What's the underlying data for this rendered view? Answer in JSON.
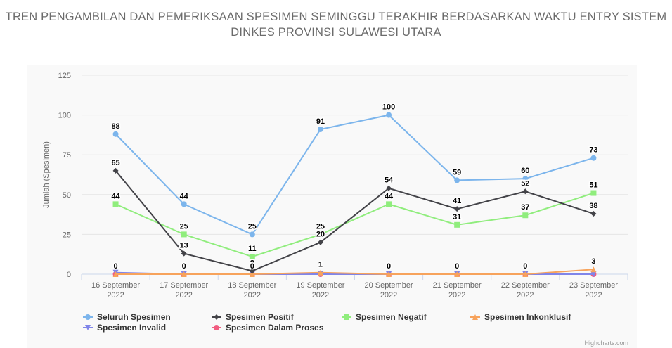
{
  "title": "TREN PENGAMBILAN DAN PEMERIKSAAN SPESIMEN SEMINGGU TERAKHIR BERDASARKAN WAKTU ENTRY SISTEM",
  "subtitle": "DINKES PROVINSI SULAWESI UTARA",
  "credits": "Highcharts.com",
  "chart_data": {
    "type": "line",
    "title": "TREN PENGAMBILAN DAN PEMERIKSAAN SPESIMEN SEMINGGU TERAKHIR BERDASARKAN WAKTU ENTRY SISTEM",
    "subtitle": "DINKES PROVINSI SULAWESI UTARA",
    "ylabel": "Jumlah (Spesimen)",
    "xlabel": "",
    "ylim": [
      0,
      125
    ],
    "yticks": [
      0,
      25,
      50,
      75,
      100,
      125
    ],
    "grid": true,
    "legend_position": "bottom",
    "categories": [
      [
        "16 September",
        "2022"
      ],
      [
        "17 September",
        "2022"
      ],
      [
        "18 September",
        "2022"
      ],
      [
        "19 September",
        "2022"
      ],
      [
        "20 September",
        "2022"
      ],
      [
        "21 September",
        "2022"
      ],
      [
        "22 September",
        "2022"
      ],
      [
        "23 September",
        "2022"
      ]
    ],
    "series": [
      {
        "name": "Seluruh Spesimen",
        "color": "#7cb5ec",
        "marker": "circle",
        "values": [
          88,
          44,
          25,
          91,
          100,
          59,
          60,
          73
        ],
        "labels": true
      },
      {
        "name": "Spesimen Positif",
        "color": "#434348",
        "marker": "diamond",
        "values": [
          65,
          13,
          2,
          20,
          54,
          41,
          52,
          38
        ],
        "labels": true
      },
      {
        "name": "Spesimen Negatif",
        "color": "#90ed7d",
        "marker": "square",
        "values": [
          44,
          25,
          11,
          25,
          44,
          31,
          37,
          51
        ],
        "labels": true
      },
      {
        "name": "Spesimen Inkonklusif",
        "color": "#f7a35c",
        "marker": "triangle",
        "values": [
          0,
          0,
          0,
          1,
          0,
          0,
          0,
          3
        ],
        "labels": true
      },
      {
        "name": "Spesimen Invalid",
        "color": "#8085e9",
        "marker": "triangle-down",
        "values": [
          1,
          0,
          0,
          0,
          0,
          0,
          0,
          0
        ],
        "labels": false
      },
      {
        "name": "Spesimen Dalam Proses",
        "color": "#f15c80",
        "marker": "circle",
        "values": [
          0,
          0,
          0,
          0,
          0,
          0,
          0,
          0
        ],
        "labels": false
      }
    ]
  }
}
